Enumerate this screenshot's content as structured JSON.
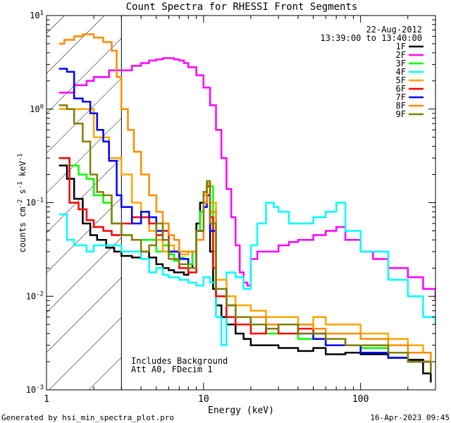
{
  "chart_data": {
    "type": "line",
    "title": "Count Spectra for RHESSI Front Segments",
    "xlabel": "Energy (keV)",
    "ylabel": "counts cm-2 s-1 keV-1",
    "xscale": "log",
    "yscale": "log",
    "xlim": [
      1,
      300
    ],
    "ylim": [
      0.001,
      10
    ],
    "x_tick_labels": [
      "1",
      "10",
      "100"
    ],
    "y_tick_labels": [
      "10^-3",
      "10^-2",
      "10^-1",
      "10^0",
      "10^1"
    ],
    "hatch_region_x": [
      1,
      3
    ],
    "date": "22-Aug-2012",
    "time_range": "13:39:00 to 13:40:00",
    "notes": [
      "Includes Background",
      "Att A0, FDecim 1"
    ],
    "series": [
      {
        "name": "1F",
        "color": "#000000",
        "x": [
          1.2,
          1.35,
          1.5,
          1.7,
          1.9,
          2.1,
          2.4,
          2.7,
          3,
          3.5,
          4,
          4.5,
          5,
          5.5,
          6,
          6.5,
          7,
          7.5,
          8,
          8.5,
          9,
          9.5,
          10,
          10.5,
          11,
          11.5,
          12,
          13,
          14,
          16,
          18,
          20,
          25,
          30,
          40,
          50,
          60,
          80,
          100,
          150,
          200,
          250,
          280
        ],
        "y": [
          0.25,
          0.18,
          0.11,
          0.06,
          0.045,
          0.04,
          0.033,
          0.03,
          0.027,
          0.026,
          0.03,
          0.026,
          0.022,
          0.02,
          0.019,
          0.018,
          0.018,
          0.017,
          0.02,
          0.03,
          0.06,
          0.1,
          0.13,
          0.15,
          0.03,
          0.012,
          0.008,
          0.006,
          0.005,
          0.004,
          0.0035,
          0.003,
          0.003,
          0.0028,
          0.0026,
          0.0028,
          0.0024,
          0.0025,
          0.0024,
          0.0022,
          0.0021,
          0.0015,
          0.0012
        ]
      },
      {
        "name": "2F",
        "color": "#ff00ff",
        "x": [
          1.2,
          1.5,
          1.8,
          2,
          2.5,
          3,
          3.5,
          4,
          4.5,
          5,
          5.5,
          6,
          6.5,
          7,
          7.5,
          8,
          9,
          10,
          11,
          12,
          13,
          14,
          15,
          16,
          17,
          18,
          19,
          20,
          22,
          25,
          30,
          35,
          40,
          50,
          60,
          70,
          80,
          100,
          120,
          150,
          200,
          250,
          300
        ],
        "y": [
          1.5,
          1.8,
          2.0,
          2.2,
          2.6,
          2.6,
          2.9,
          3.1,
          3.3,
          3.4,
          3.5,
          3.5,
          3.4,
          3.3,
          3.1,
          2.8,
          2.3,
          1.7,
          1.1,
          0.6,
          0.3,
          0.14,
          0.07,
          0.035,
          0.018,
          0.014,
          0.013,
          0.025,
          0.03,
          0.03,
          0.035,
          0.038,
          0.04,
          0.045,
          0.05,
          0.055,
          0.04,
          0.03,
          0.025,
          0.02,
          0.016,
          0.012,
          0.009
        ]
      },
      {
        "name": "3F",
        "color": "#00ff00",
        "x": [
          1.2,
          1.4,
          1.6,
          1.8,
          2,
          2.3,
          2.6,
          3,
          3.5,
          4,
          4.5,
          5,
          5.5,
          6,
          6.5,
          7,
          7.5,
          8,
          8.5,
          9,
          9.5,
          10,
          10.5,
          11,
          11.5,
          12,
          14,
          16,
          20,
          25,
          30,
          40,
          50,
          60,
          80,
          100,
          150,
          200,
          280
        ],
        "y": [
          0.3,
          0.25,
          0.2,
          0.18,
          0.12,
          0.1,
          0.06,
          0.045,
          0.04,
          0.04,
          0.04,
          0.03,
          0.035,
          0.028,
          0.024,
          0.026,
          0.025,
          0.022,
          0.03,
          0.05,
          0.08,
          0.12,
          0.16,
          0.15,
          0.03,
          0.012,
          0.008,
          0.006,
          0.005,
          0.004,
          0.004,
          0.0035,
          0.004,
          0.003,
          0.003,
          0.0028,
          0.0025,
          0.002,
          0.0015
        ]
      },
      {
        "name": "4F",
        "color": "#00ffff",
        "x": [
          1.2,
          1.35,
          1.5,
          1.8,
          2,
          2.5,
          3,
          3.5,
          4,
          4.5,
          5,
          5.5,
          6,
          7,
          8,
          9,
          10,
          11,
          12,
          13,
          14,
          16,
          18,
          20,
          22,
          25,
          28,
          30,
          35,
          40,
          50,
          60,
          70,
          80,
          100,
          150,
          200,
          250,
          300
        ],
        "y": [
          0.075,
          0.04,
          0.035,
          0.03,
          0.035,
          0.035,
          0.03,
          0.03,
          0.025,
          0.018,
          0.02,
          0.017,
          0.016,
          0.015,
          0.014,
          0.013,
          0.016,
          0.014,
          0.006,
          0.003,
          0.018,
          0.016,
          0.012,
          0.035,
          0.06,
          0.1,
          0.09,
          0.08,
          0.06,
          0.06,
          0.07,
          0.08,
          0.1,
          0.05,
          0.03,
          0.015,
          0.01,
          0.006,
          0.005
        ]
      },
      {
        "name": "5F",
        "color": "#ffa500",
        "x": [
          1.2,
          1.5,
          2,
          2.5,
          3,
          3.5,
          4,
          4.5,
          5,
          5.5,
          6,
          6.5,
          7,
          8,
          9,
          10,
          10.5,
          11,
          12,
          14,
          16,
          20,
          25,
          30,
          40,
          50,
          60,
          80,
          100,
          150,
          200,
          250,
          280
        ],
        "y": [
          1.0,
          1.0,
          0.5,
          0.3,
          0.2,
          0.1,
          0.07,
          0.05,
          0.04,
          0.03,
          0.035,
          0.03,
          0.028,
          0.03,
          0.05,
          0.12,
          0.16,
          0.1,
          0.015,
          0.01,
          0.008,
          0.007,
          0.006,
          0.006,
          0.005,
          0.006,
          0.005,
          0.005,
          0.004,
          0.0035,
          0.003,
          0.0025,
          0.002
        ]
      },
      {
        "name": "6F",
        "color": "#ff0000",
        "x": [
          1.2,
          1.4,
          1.6,
          1.8,
          2,
          2.3,
          2.6,
          3,
          3.5,
          4,
          4.5,
          5,
          5.5,
          6,
          7,
          8,
          9,
          10,
          10.5,
          11,
          11.5,
          12,
          14,
          16,
          20,
          25,
          30,
          40,
          50,
          60,
          80,
          100,
          150,
          200,
          280
        ],
        "y": [
          0.3,
          0.1,
          0.085,
          0.065,
          0.055,
          0.05,
          0.045,
          0.06,
          0.07,
          0.07,
          0.06,
          0.045,
          0.05,
          0.03,
          0.02,
          0.018,
          0.04,
          0.1,
          0.15,
          0.07,
          0.02,
          0.01,
          0.006,
          0.005,
          0.004,
          0.005,
          0.004,
          0.0045,
          0.004,
          0.0035,
          0.003,
          0.003,
          0.0025,
          0.002,
          0.0015
        ]
      },
      {
        "name": "7F",
        "color": "#0000ff",
        "x": [
          1.2,
          1.35,
          1.5,
          1.7,
          1.9,
          2.1,
          2.3,
          2.5,
          2.8,
          3,
          3.5,
          4,
          4.5,
          5,
          5.5,
          6,
          7,
          8,
          9,
          10,
          10.5,
          11,
          12,
          14,
          16,
          20,
          25,
          30,
          40,
          50,
          60,
          80,
          100,
          150,
          200,
          280
        ],
        "y": [
          2.7,
          2.5,
          1.3,
          1.2,
          0.9,
          0.6,
          0.45,
          0.28,
          0.12,
          0.09,
          0.06,
          0.08,
          0.07,
          0.05,
          0.04,
          0.03,
          0.025,
          0.02,
          0.05,
          0.09,
          0.12,
          0.05,
          0.012,
          0.008,
          0.006,
          0.005,
          0.0045,
          0.005,
          0.004,
          0.0035,
          0.003,
          0.003,
          0.0025,
          0.0022,
          0.002,
          0.0015
        ]
      },
      {
        "name": "8F",
        "color": "#ff8c00",
        "x": [
          1.2,
          1.3,
          1.5,
          1.7,
          2,
          2.3,
          2.6,
          2.8,
          3,
          3.3,
          3.6,
          4,
          4.5,
          5,
          5.5,
          6,
          6.5,
          7,
          8,
          9,
          10,
          10.5,
          11,
          12,
          14,
          16,
          20,
          25,
          30,
          40,
          50,
          60,
          80,
          100,
          150,
          200,
          280
        ],
        "y": [
          5,
          5.5,
          6,
          6.3,
          5.8,
          5.2,
          4.2,
          2.2,
          1.0,
          0.6,
          0.35,
          0.2,
          0.12,
          0.08,
          0.06,
          0.045,
          0.04,
          0.03,
          0.03,
          0.04,
          0.1,
          0.16,
          0.08,
          0.012,
          0.008,
          0.006,
          0.006,
          0.005,
          0.005,
          0.005,
          0.0045,
          0.004,
          0.004,
          0.0035,
          0.003,
          0.0025,
          0.0018
        ]
      },
      {
        "name": "9F",
        "color": "#808000",
        "x": [
          1.2,
          1.35,
          1.5,
          1.7,
          1.9,
          2.1,
          2.3,
          2.6,
          3,
          3.5,
          4,
          4.5,
          5,
          5.5,
          6,
          7,
          8,
          9,
          10,
          10.5,
          11,
          12,
          14,
          16,
          20,
          25,
          30,
          40,
          50,
          60,
          80,
          100,
          150,
          200,
          280
        ],
        "y": [
          1.1,
          1.0,
          0.7,
          0.45,
          0.2,
          0.13,
          0.12,
          0.06,
          0.045,
          0.04,
          0.03,
          0.035,
          0.06,
          0.04,
          0.025,
          0.022,
          0.02,
          0.05,
          0.13,
          0.17,
          0.06,
          0.012,
          0.008,
          0.006,
          0.005,
          0.0045,
          0.005,
          0.004,
          0.004,
          0.0035,
          0.003,
          0.003,
          0.0025,
          0.002,
          0.0015
        ]
      }
    ]
  },
  "footer": {
    "generated_by": "Generated by hsi_min_spectra_plot.pro",
    "timestamp": "16-Apr-2023 09:45"
  }
}
